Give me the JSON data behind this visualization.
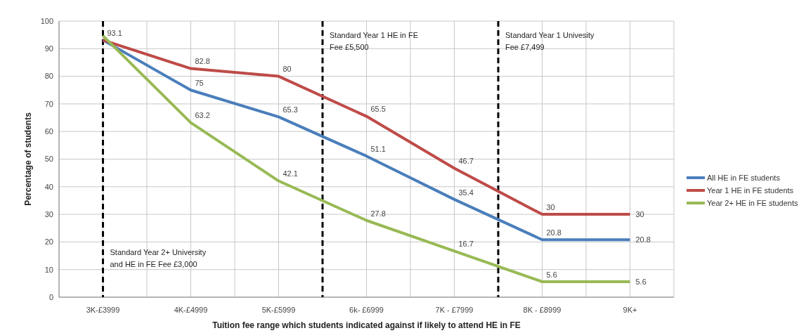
{
  "chart_data": {
    "type": "line",
    "xlabel": "Tuition fee range which students indicated against if likely to attend HE in FE",
    "ylabel": "Percentage of students",
    "categories": [
      "3K-£3999",
      "4K-£4999",
      "5K-£5999",
      "6k- £6999",
      "7K - £7999",
      "8K - £8999",
      "9K+"
    ],
    "series": [
      {
        "name": "All HE in FE students",
        "color": "#4a7ebb",
        "values": [
          93.1,
          75,
          65.3,
          51.1,
          35.4,
          20.8,
          20.8
        ],
        "value_labels": [
          null,
          "75",
          "65.3",
          "51.1",
          "35.4",
          "20.8",
          "20.8"
        ]
      },
      {
        "name": "Year 1 HE in FE students",
        "color": "#be4b48",
        "values": [
          93.1,
          82.8,
          80,
          65.5,
          46.7,
          30,
          30
        ],
        "value_labels": [
          "93.1",
          "82.8",
          "80",
          "65.5",
          "46.7",
          "30",
          "30"
        ]
      },
      {
        "name": "Year 2+ HE in FE students",
        "color": "#98b954",
        "values": [
          94.7,
          63.2,
          42.1,
          27.8,
          16.7,
          5.6,
          5.6
        ],
        "value_labels": [
          null,
          "63.2",
          "42.1",
          "27.8",
          "16.7",
          "5.6",
          "5.6"
        ]
      }
    ],
    "ylim": [
      0,
      100
    ],
    "yticks": [
      0,
      10,
      20,
      30,
      40,
      50,
      60,
      70,
      80,
      90,
      100
    ],
    "grid": true,
    "legend": "right",
    "marker": "none",
    "line_style": "solid",
    "annotations": [
      "Standard Year 2+ University\nand HE in FE Fee £3,000",
      "Standard Year 1 HE in FE\nFee £5,500",
      "Standard Year 1 Univesity\nFee £7,499"
    ]
  }
}
